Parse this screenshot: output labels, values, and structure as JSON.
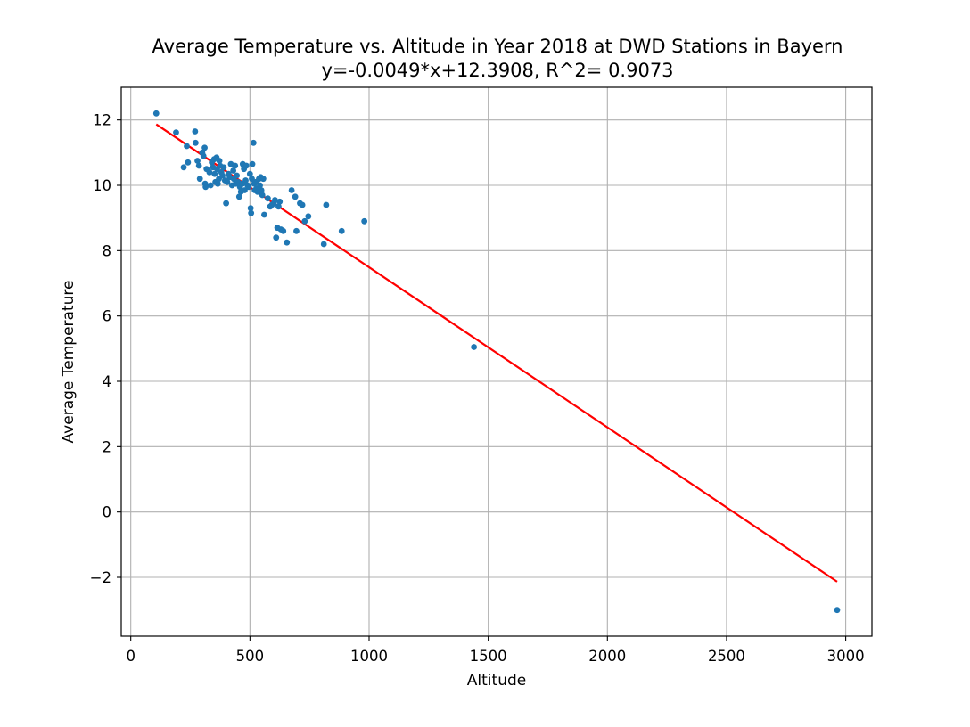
{
  "chart_data": {
    "type": "scatter",
    "title": "Average Temperature vs. Altitude in Year 2018 at DWD Stations in Bayern",
    "subtitle": "y=-0.0049*x+12.3908, R^2= 0.9073",
    "xlabel": "Altitude",
    "ylabel": "Average Temperature",
    "xlim": [
      -40,
      3110
    ],
    "ylim": [
      -3.8,
      13.0
    ],
    "x_ticks": [
      0,
      500,
      1000,
      1500,
      2000,
      2500,
      3000
    ],
    "x_tick_labels": [
      "0",
      "500",
      "1000",
      "1500",
      "2000",
      "2500",
      "3000"
    ],
    "y_ticks": [
      -2,
      0,
      2,
      4,
      6,
      8,
      10,
      12
    ],
    "y_tick_labels": [
      "−2",
      "0",
      "2",
      "4",
      "6",
      "8",
      "10",
      "12"
    ],
    "grid": true,
    "colors": {
      "points": "#1f77b4",
      "fit_line": "#ff0000",
      "grid": "#b0b0b0"
    },
    "fit_line": {
      "slope": -0.0049,
      "intercept": 12.3908,
      "x_range": [
        107,
        2964
      ]
    },
    "points": [
      [
        107,
        12.2
      ],
      [
        190,
        11.62
      ],
      [
        222,
        10.55
      ],
      [
        235,
        11.2
      ],
      [
        240,
        10.7
      ],
      [
        270,
        11.65
      ],
      [
        272,
        11.3
      ],
      [
        280,
        10.75
      ],
      [
        286,
        10.6
      ],
      [
        290,
        10.2
      ],
      [
        300,
        11.0
      ],
      [
        305,
        10.9
      ],
      [
        310,
        11.15
      ],
      [
        312,
        10.05
      ],
      [
        314,
        9.95
      ],
      [
        318,
        10.5
      ],
      [
        330,
        10.4
      ],
      [
        335,
        10.0
      ],
      [
        340,
        10.7
      ],
      [
        345,
        10.55
      ],
      [
        350,
        10.8
      ],
      [
        352,
        10.35
      ],
      [
        355,
        10.1
      ],
      [
        360,
        10.85
      ],
      [
        362,
        10.5
      ],
      [
        365,
        10.05
      ],
      [
        370,
        10.2
      ],
      [
        372,
        10.75
      ],
      [
        375,
        10.6
      ],
      [
        380,
        10.4
      ],
      [
        385,
        10.3
      ],
      [
        390,
        10.55
      ],
      [
        395,
        10.15
      ],
      [
        400,
        9.45
      ],
      [
        405,
        10.1
      ],
      [
        410,
        10.35
      ],
      [
        415,
        10.25
      ],
      [
        420,
        10.65
      ],
      [
        425,
        10.0
      ],
      [
        430,
        10.45
      ],
      [
        432,
        10.2
      ],
      [
        438,
        10.6
      ],
      [
        440,
        10.05
      ],
      [
        445,
        10.3
      ],
      [
        450,
        10.1
      ],
      [
        455,
        9.65
      ],
      [
        458,
        9.95
      ],
      [
        462,
        9.8
      ],
      [
        468,
        10.05
      ],
      [
        470,
        10.65
      ],
      [
        475,
        10.5
      ],
      [
        478,
        9.85
      ],
      [
        482,
        10.15
      ],
      [
        485,
        10.6
      ],
      [
        490,
        10.0
      ],
      [
        495,
        9.95
      ],
      [
        500,
        10.35
      ],
      [
        503,
        9.3
      ],
      [
        505,
        9.15
      ],
      [
        508,
        10.2
      ],
      [
        510,
        10.65
      ],
      [
        515,
        11.3
      ],
      [
        518,
        10.05
      ],
      [
        520,
        9.85
      ],
      [
        525,
        10.1
      ],
      [
        528,
        9.9
      ],
      [
        532,
        9.8
      ],
      [
        538,
        10.2
      ],
      [
        542,
        10.0
      ],
      [
        545,
        10.25
      ],
      [
        548,
        9.85
      ],
      [
        552,
        9.7
      ],
      [
        556,
        10.2
      ],
      [
        560,
        9.1
      ],
      [
        575,
        9.6
      ],
      [
        585,
        9.35
      ],
      [
        592,
        9.4
      ],
      [
        600,
        9.45
      ],
      [
        605,
        9.55
      ],
      [
        610,
        8.4
      ],
      [
        615,
        8.7
      ],
      [
        620,
        9.35
      ],
      [
        625,
        9.5
      ],
      [
        630,
        8.65
      ],
      [
        640,
        8.6
      ],
      [
        655,
        8.25
      ],
      [
        675,
        9.85
      ],
      [
        690,
        9.65
      ],
      [
        695,
        8.6
      ],
      [
        710,
        9.45
      ],
      [
        720,
        9.4
      ],
      [
        730,
        8.9
      ],
      [
        745,
        9.05
      ],
      [
        810,
        8.2
      ],
      [
        820,
        9.4
      ],
      [
        885,
        8.6
      ],
      [
        980,
        8.9
      ],
      [
        1440,
        5.05
      ],
      [
        2964,
        -3.0
      ]
    ]
  }
}
